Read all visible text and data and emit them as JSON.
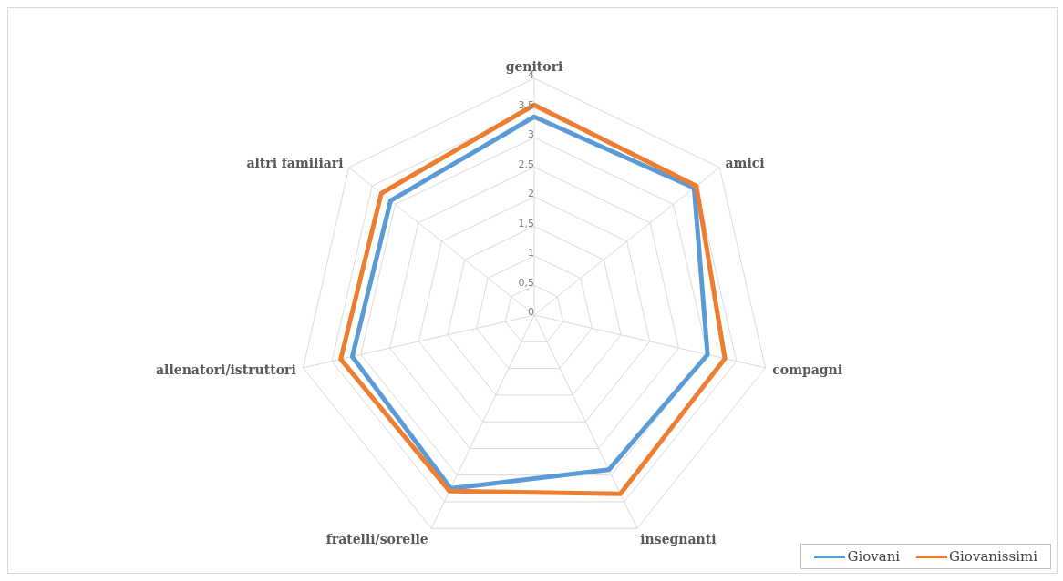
{
  "chart_data": {
    "type": "radar",
    "categories": [
      "genitori",
      "amici",
      "compagni",
      "insegnanti",
      "fratelli/sorelle",
      "allenatori/istruttori",
      "altri familiari"
    ],
    "series": [
      {
        "name": "Giovani",
        "color": "#5b9bd5",
        "values": [
          3.35,
          3.45,
          3.0,
          2.9,
          3.25,
          3.15,
          3.1
        ]
      },
      {
        "name": "Giovanissimi",
        "color": "#ed7d31",
        "values": [
          3.55,
          3.5,
          3.3,
          3.35,
          3.3,
          3.35,
          3.3
        ]
      }
    ],
    "ylim": [
      0,
      4
    ],
    "yticks": [
      0,
      {
        "value": 0.5,
        "label": "0,5"
      },
      1,
      {
        "value": 1.5,
        "label": "1,5"
      },
      2,
      {
        "value": 2.5,
        "label": "2,5"
      },
      3,
      {
        "value": 3.5,
        "label": "3,5"
      },
      4
    ],
    "grid": true,
    "legend": "bottom right"
  }
}
